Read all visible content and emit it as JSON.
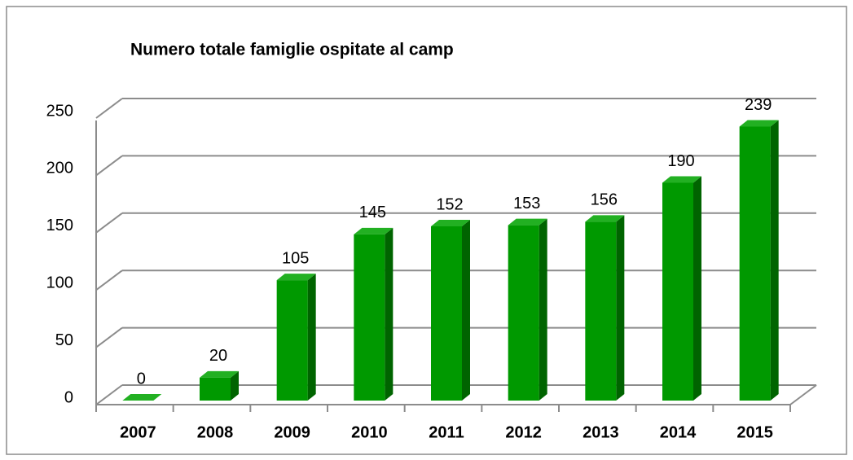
{
  "chart_data": {
    "type": "bar3d",
    "title": "Numero totale famiglie ospitate al camp",
    "categories": [
      "2007",
      "2008",
      "2009",
      "2010",
      "2011",
      "2012",
      "2013",
      "2014",
      "2015"
    ],
    "values": [
      0,
      20,
      105,
      145,
      152,
      153,
      156,
      190,
      239
    ],
    "color": "#009900",
    "ylim": [
      0,
      250
    ],
    "yticks": [
      0,
      50,
      100,
      150,
      200,
      250
    ],
    "grid": true
  }
}
